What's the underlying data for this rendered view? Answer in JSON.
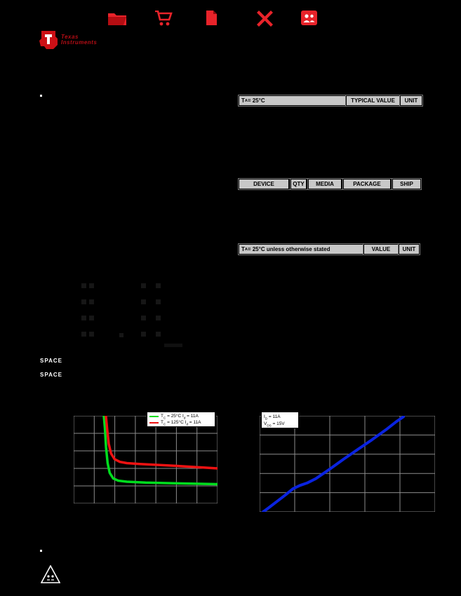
{
  "page": {
    "bg": "#000000"
  },
  "toolbar": {
    "icon_color": "#e8232a",
    "icons": [
      {
        "name": "folder"
      },
      {
        "name": "cart"
      },
      {
        "name": "document"
      },
      {
        "name": "cancel"
      },
      {
        "name": "people"
      }
    ]
  },
  "logo": {
    "word1": "Texas",
    "word2": "Instruments",
    "color": "#b50d15"
  },
  "tables": {
    "typ_value": {
      "c1": [
        {
          "t": "T"
        },
        {
          "s": "A"
        },
        {
          "t": " = 25°C"
        }
      ],
      "c2": "TYPICAL VALUE",
      "c3": "UNIT"
    },
    "ordering": {
      "c1": "DEVICE",
      "c2": "QTY",
      "c3": "MEDIA",
      "c4": "PACKAGE",
      "c5": "SHIP"
    },
    "thermal": {
      "c1": [
        {
          "t": "T"
        },
        {
          "s": "A"
        },
        {
          "t": " = 25°C unless otherwise stated"
        }
      ],
      "c2": "VALUE",
      "c3": "UNIT"
    }
  },
  "spacers": {
    "s1": "SPACE",
    "s2": "SPACE"
  },
  "chart_data": [
    {
      "type": "line",
      "title": "",
      "legend_position": "top-right",
      "axis_labels_visible": false,
      "grid": {
        "cols": 7,
        "rows": 5,
        "color": "#8c8c8c"
      },
      "series": [
        {
          "label_segments": [
            {
              "t": "T"
            },
            {
              "s": "C"
            },
            {
              "t": " = 25°C   "
            },
            {
              "t": "I"
            },
            {
              "s": "d"
            },
            {
              "t": " = 11A"
            }
          ],
          "color": "#00dd1e",
          "width": 3.5,
          "points_pct": [
            [
              21,
              100
            ],
            [
              21.7,
              86
            ],
            [
              22.5,
              64
            ],
            [
              23.6,
              46
            ],
            [
              25,
              35
            ],
            [
              27.5,
              28.5
            ],
            [
              31,
              26
            ],
            [
              37,
              24.8
            ],
            [
              50,
              23.8
            ],
            [
              65,
              23.2
            ],
            [
              82,
              22.6
            ],
            [
              100,
              22
            ]
          ]
        },
        {
          "label_segments": [
            {
              "t": "T"
            },
            {
              "s": "C"
            },
            {
              "t": " = 125°C "
            },
            {
              "t": "I"
            },
            {
              "s": "d"
            },
            {
              "t": " = 11A"
            }
          ],
          "color": "#ee1212",
          "width": 3.5,
          "points_pct": [
            [
              22.4,
              100
            ],
            [
              23.3,
              84
            ],
            [
              24.4,
              68
            ],
            [
              26,
              57
            ],
            [
              28.5,
              50.5
            ],
            [
              32,
              47.5
            ],
            [
              37,
              46
            ],
            [
              46,
              45
            ],
            [
              58,
              44
            ],
            [
              72,
              42.8
            ],
            [
              86,
              41.4
            ],
            [
              100,
              40
            ]
          ]
        }
      ]
    },
    {
      "type": "line",
      "title": "",
      "legend_position": "top-left",
      "axis_labels_visible": false,
      "grid": {
        "cols": 5,
        "rows": 5,
        "color": "#8c8c8c"
      },
      "series": [
        {
          "label_segments": [
            {
              "t": "I"
            },
            {
              "s": "D"
            },
            {
              "t": " = 11A"
            }
          ],
          "label2_segments": [
            {
              "t": "V"
            },
            {
              "s": "DS"
            },
            {
              "t": " = 15V"
            }
          ],
          "color": "#0a23e0",
          "width": 4,
          "points_pct": [
            [
              2,
              0
            ],
            [
              5,
              4
            ],
            [
              10,
              11
            ],
            [
              15,
              18
            ],
            [
              19,
              24
            ],
            [
              23,
              27.5
            ],
            [
              27,
              30
            ],
            [
              32,
              34.5
            ],
            [
              40,
              44.5
            ],
            [
              48,
              55
            ],
            [
              56,
              65
            ],
            [
              64,
              75
            ],
            [
              72,
              85.5
            ],
            [
              78,
              94
            ],
            [
              82,
              99
            ]
          ]
        }
      ]
    }
  ]
}
